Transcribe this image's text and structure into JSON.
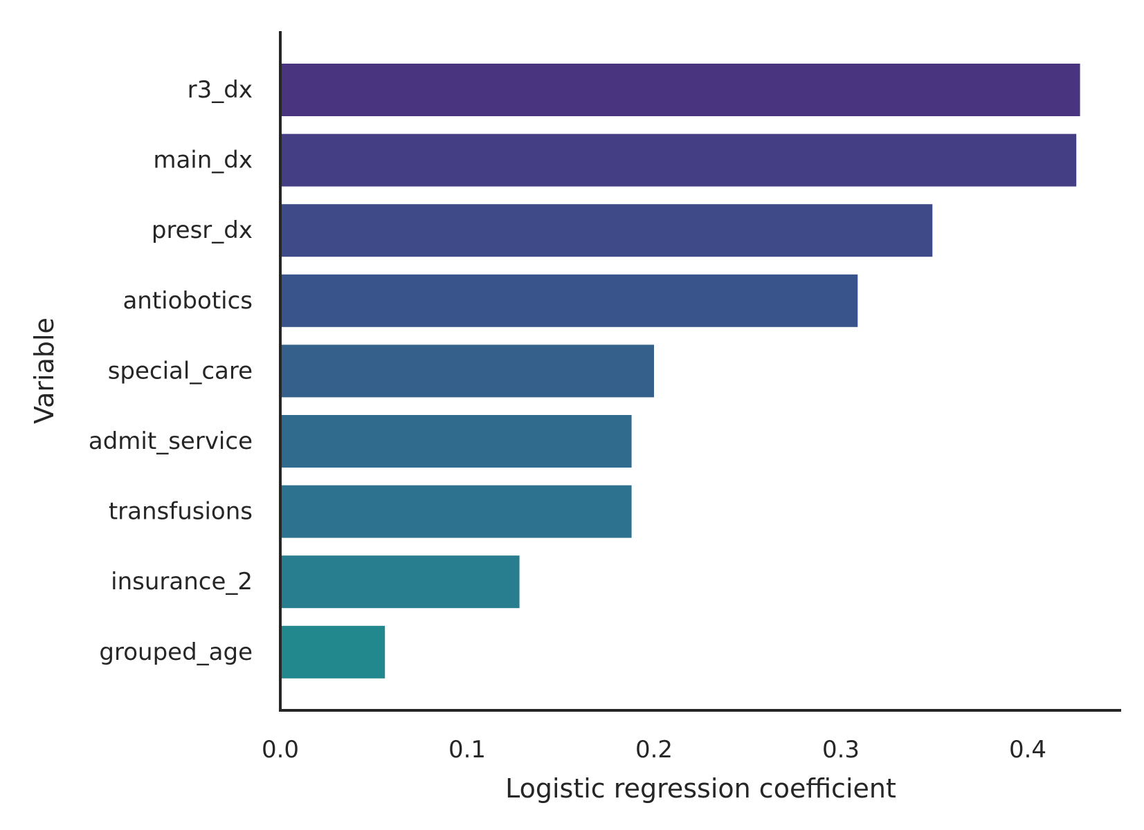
{
  "chart_data": {
    "type": "bar",
    "orientation": "horizontal",
    "xlabel": "Logistic regression coefficient",
    "ylabel": "Variable",
    "xlim": [
      0,
      0.45
    ],
    "xticks": [
      "0.0",
      "0.1",
      "0.2",
      "0.3",
      "0.4"
    ],
    "grid": false,
    "categories": [
      "r3_dx",
      "main_dx",
      "presr_dx",
      "antiobotics",
      "special_care",
      "admit_service",
      "transfusions",
      "insurance_2",
      "grouped_age"
    ],
    "values": [
      0.428,
      0.426,
      0.349,
      0.309,
      0.2,
      0.188,
      0.188,
      0.128,
      0.056
    ],
    "colors": [
      "#48347f",
      "#443e84",
      "#3f4a89",
      "#39548a",
      "#35608c",
      "#306b8e",
      "#2d728e",
      "#287d8e",
      "#23878e"
    ]
  }
}
